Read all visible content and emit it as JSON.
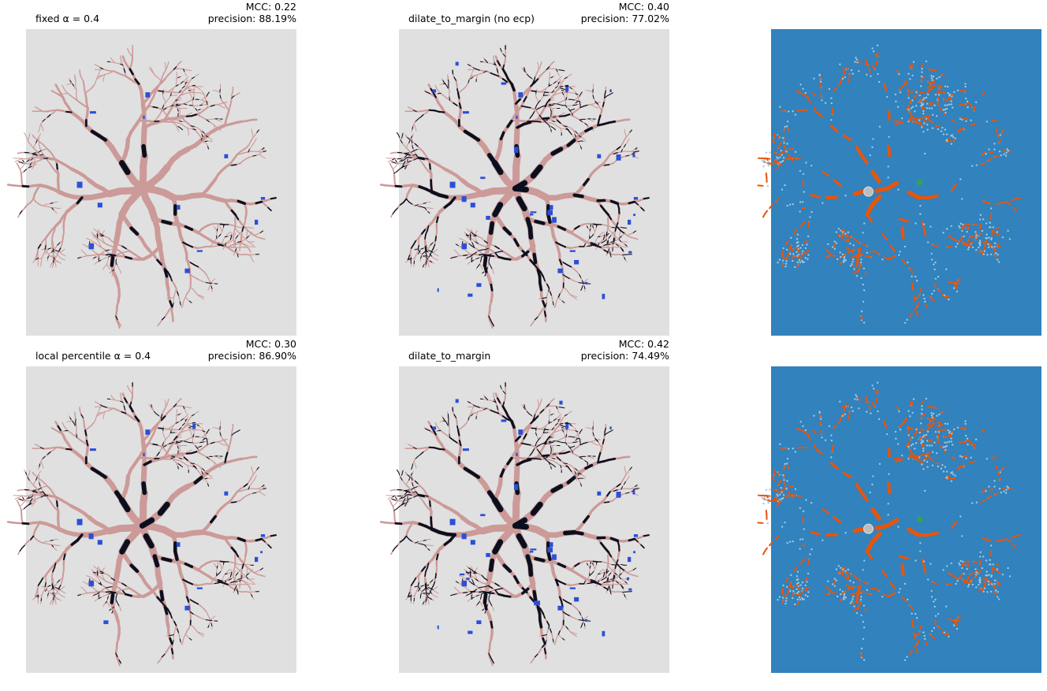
{
  "panels": [
    {
      "title": "fixed α = 0.4",
      "mcc": "MCC: 0.22",
      "precision": "precision: 88.19%"
    },
    {
      "title": "dilate_to_margin (no ecp)",
      "mcc": "MCC: 0.40",
      "precision": "precision: 77.02%"
    },
    {
      "title": "local percentile α = 0.4",
      "mcc": "MCC: 0.30",
      "precision": "precision: 86.90%"
    },
    {
      "title": "dilate_to_margin",
      "mcc": "MCC: 0.42",
      "precision": "precision: 74.49%"
    }
  ]
}
